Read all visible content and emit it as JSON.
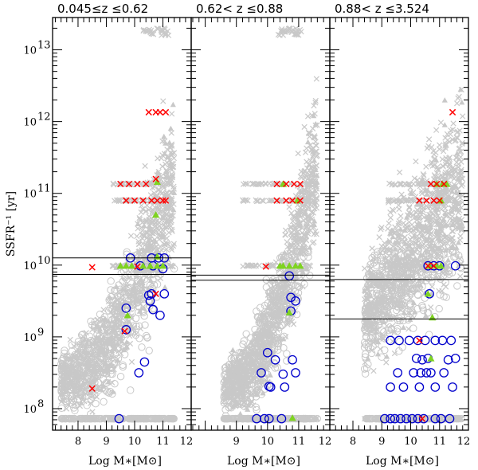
{
  "chart_data": {
    "type": "scatter",
    "y_scale": "log",
    "y_label": "SSFR⁻¹ [yr]",
    "y_tick_labels": [
      {
        "value": 100000000,
        "base": "10",
        "exp": "8"
      },
      {
        "value": 1000000000,
        "base": "10",
        "exp": "9"
      },
      {
        "value": 10000000000,
        "base": "10",
        "exp": "10"
      },
      {
        "value": 100000000000,
        "base": "10",
        "exp": "11"
      },
      {
        "value": 1000000000000,
        "base": "10",
        "exp": "12"
      },
      {
        "value": 10000000000000,
        "base": "10",
        "exp": "13"
      }
    ],
    "x_label": "Log M∗[M⊙]",
    "colors": {
      "background": "#c8c8c8",
      "cross": "#ff0000",
      "triangle": "#7ed321",
      "circle": "#0000cc",
      "axis": "#000000"
    },
    "panels": [
      {
        "title": "0.045≤z ≤0.62",
        "xlim": [
          7.1,
          12
        ],
        "ylim_log10": [
          7.7,
          13.45
        ],
        "x_ticks": [
          "8",
          "9",
          "10",
          "11",
          "12"
        ],
        "x_tick_values": [
          8,
          9,
          10,
          11,
          12
        ],
        "hlines_log10": [
          10.1,
          9.87
        ],
        "cloud": {
          "x_range": [
            7.4,
            11.4
          ],
          "y_range_log10": [
            7.86,
            13.3
          ],
          "trend": "lower-left to upper-right"
        },
        "crosses": [
          [
            10.5,
            12.13
          ],
          [
            10.75,
            12.13
          ],
          [
            10.9,
            12.13
          ],
          [
            11.1,
            12.13
          ],
          [
            9.5,
            11.13
          ],
          [
            9.8,
            11.13
          ],
          [
            10.1,
            11.13
          ],
          [
            10.4,
            11.13
          ],
          [
            9.7,
            10.9
          ],
          [
            10.0,
            10.9
          ],
          [
            10.3,
            10.9
          ],
          [
            10.6,
            10.9
          ],
          [
            10.8,
            10.9
          ],
          [
            11.0,
            10.9
          ],
          [
            11.1,
            10.9
          ],
          [
            10.75,
            11.2
          ],
          [
            8.5,
            9.97
          ],
          [
            10.1,
            9.98
          ],
          [
            10.75,
            9.6
          ],
          [
            9.65,
            9.08
          ],
          [
            8.5,
            8.28
          ]
        ],
        "triangles": [
          [
            10.8,
            11.16
          ],
          [
            10.75,
            10.7
          ],
          [
            9.5,
            9.99
          ],
          [
            9.7,
            9.99
          ],
          [
            9.9,
            9.99
          ],
          [
            10.3,
            9.99
          ],
          [
            10.55,
            9.99
          ],
          [
            10.8,
            9.99
          ],
          [
            11.0,
            9.99
          ],
          [
            10.8,
            10.12
          ],
          [
            10.55,
            9.99
          ],
          [
            9.75,
            9.3
          ]
        ],
        "circles": [
          [
            9.85,
            10.1
          ],
          [
            10.6,
            10.1
          ],
          [
            10.85,
            10.1
          ],
          [
            11.05,
            10.1
          ],
          [
            10.2,
            9.99
          ],
          [
            10.65,
            9.99
          ],
          [
            11.0,
            9.95
          ],
          [
            10.5,
            9.58
          ],
          [
            10.6,
            9.6
          ],
          [
            11.05,
            9.6
          ],
          [
            9.7,
            9.4
          ],
          [
            10.55,
            9.5
          ],
          [
            10.65,
            9.38
          ],
          [
            10.9,
            9.3
          ],
          [
            9.7,
            9.1
          ],
          [
            10.35,
            8.65
          ],
          [
            10.15,
            8.5
          ],
          [
            9.45,
            7.86
          ]
        ]
      },
      {
        "title": "0.62< z ≤0.88",
        "xlim": [
          7.55,
          12
        ],
        "ylim_log10": [
          7.7,
          13.45
        ],
        "x_ticks": [
          "9",
          "10",
          "11",
          "12"
        ],
        "x_tick_values": [
          9,
          10,
          11,
          12
        ],
        "hlines_log10": [
          9.86,
          9.79
        ],
        "cloud": {
          "x_range": [
            8.6,
            11.6
          ],
          "y_range_log10": [
            7.86,
            13.3
          ],
          "trend": "lower-left to upper-right"
        },
        "crosses": [
          [
            10.3,
            11.13
          ],
          [
            10.6,
            11.13
          ],
          [
            10.85,
            11.13
          ],
          [
            11.05,
            11.13
          ],
          [
            10.3,
            10.9
          ],
          [
            10.6,
            10.9
          ],
          [
            10.8,
            10.9
          ],
          [
            11.05,
            10.9
          ],
          [
            9.95,
            9.98
          ]
        ],
        "triangles": [
          [
            10.5,
            9.99
          ],
          [
            10.7,
            9.99
          ],
          [
            10.9,
            9.99
          ],
          [
            11.05,
            9.99
          ],
          [
            10.5,
            11.13
          ],
          [
            10.95,
            10.9
          ],
          [
            10.4,
            9.99
          ],
          [
            10.8,
            7.87
          ],
          [
            10.7,
            9.34
          ]
        ],
        "circles": [
          [
            10.7,
            9.85
          ],
          [
            10.75,
            9.55
          ],
          [
            10.9,
            9.5
          ],
          [
            10.75,
            9.36
          ],
          [
            10.0,
            8.78
          ],
          [
            10.25,
            8.68
          ],
          [
            10.8,
            8.68
          ],
          [
            9.8,
            8.5
          ],
          [
            10.9,
            8.5
          ],
          [
            10.5,
            8.48
          ],
          [
            10.05,
            8.31
          ],
          [
            10.1,
            8.3
          ],
          [
            10.55,
            8.3
          ],
          [
            9.65,
            7.86
          ],
          [
            9.9,
            7.86
          ],
          [
            10.05,
            7.86
          ],
          [
            10.45,
            7.86
          ]
        ]
      },
      {
        "title": "0.88< z ≤3.524",
        "xlim": [
          7.2,
          12
        ],
        "ylim_log10": [
          7.7,
          13.45
        ],
        "x_ticks": [
          "8",
          "9",
          "10",
          "11",
          "12"
        ],
        "x_tick_values": [
          8,
          9,
          10,
          11,
          12
        ],
        "hlines_log10": [
          9.8,
          9.25
        ],
        "cloud": {
          "x_range": [
            8.4,
            11.8
          ],
          "y_range_log10": [
            7.86,
            13.3
          ],
          "trend": "broad vertical band"
        },
        "crosses": [
          [
            11.45,
            12.13
          ],
          [
            10.7,
            11.13
          ],
          [
            10.9,
            11.13
          ],
          [
            11.15,
            11.13
          ],
          [
            10.3,
            10.9
          ],
          [
            10.55,
            10.9
          ],
          [
            10.8,
            10.9
          ],
          [
            11.0,
            10.9
          ],
          [
            10.6,
            9.99
          ],
          [
            10.8,
            9.99
          ],
          [
            10.3,
            8.95
          ],
          [
            10.4,
            7.86
          ]
        ],
        "triangles": [
          [
            10.9,
            11.13
          ],
          [
            11.1,
            11.13
          ],
          [
            11.25,
            11.13
          ],
          [
            11.05,
            10.9
          ],
          [
            10.65,
            9.99
          ],
          [
            10.9,
            9.99
          ],
          [
            11.05,
            9.99
          ],
          [
            10.6,
            9.6
          ],
          [
            10.75,
            9.27
          ],
          [
            10.7,
            8.7
          ]
        ],
        "circles": [
          [
            10.6,
            9.99
          ],
          [
            10.8,
            9.99
          ],
          [
            11.0,
            9.99
          ],
          [
            11.55,
            9.99
          ],
          [
            10.65,
            9.6
          ],
          [
            9.3,
            8.95
          ],
          [
            9.6,
            8.95
          ],
          [
            9.95,
            8.95
          ],
          [
            10.25,
            8.95
          ],
          [
            10.5,
            8.95
          ],
          [
            10.85,
            8.95
          ],
          [
            11.1,
            8.95
          ],
          [
            11.4,
            8.95
          ],
          [
            10.2,
            8.7
          ],
          [
            10.4,
            8.68
          ],
          [
            10.6,
            8.7
          ],
          [
            11.3,
            8.68
          ],
          [
            11.55,
            8.7
          ],
          [
            9.55,
            8.5
          ],
          [
            10.1,
            8.5
          ],
          [
            10.35,
            8.5
          ],
          [
            10.55,
            8.5
          ],
          [
            10.7,
            8.5
          ],
          [
            11.15,
            8.5
          ],
          [
            9.3,
            8.3
          ],
          [
            9.75,
            8.3
          ],
          [
            10.3,
            8.3
          ],
          [
            10.85,
            8.3
          ],
          [
            11.45,
            8.3
          ],
          [
            9.1,
            7.86
          ],
          [
            9.3,
            7.86
          ],
          [
            9.45,
            7.86
          ],
          [
            9.65,
            7.86
          ],
          [
            9.85,
            7.86
          ],
          [
            10.05,
            7.86
          ],
          [
            10.25,
            7.86
          ],
          [
            10.45,
            7.86
          ],
          [
            10.85,
            7.86
          ],
          [
            11.05,
            7.86
          ],
          [
            11.35,
            7.86
          ]
        ]
      }
    ]
  }
}
